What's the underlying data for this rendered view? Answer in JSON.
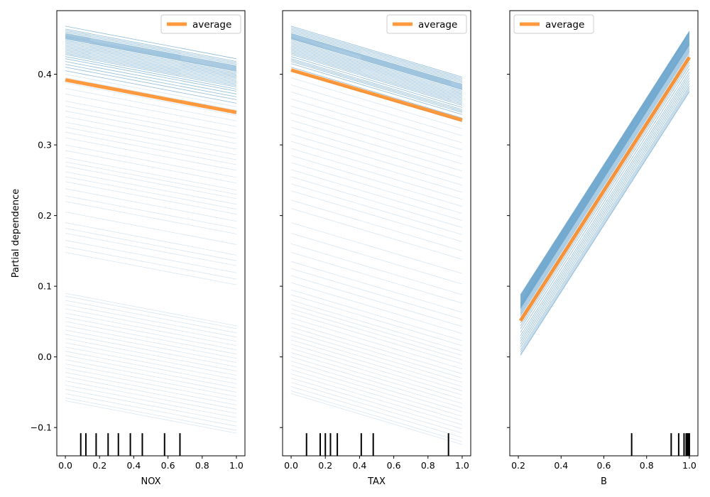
{
  "chart_data": [
    {
      "type": "line",
      "xlabel": "NOX",
      "ylabel": "Partial dependence",
      "xlim": [
        -0.05,
        1.05
      ],
      "ylim": [
        -0.14,
        0.49
      ],
      "xticks": [
        0.0,
        0.2,
        0.4,
        0.6,
        0.8,
        1.0
      ],
      "xtick_labels": [
        "0.0",
        "0.2",
        "0.4",
        "0.6",
        "0.8",
        "1.0"
      ],
      "yticks": [
        -0.1,
        0.0,
        0.1,
        0.2,
        0.3,
        0.4
      ],
      "ytick_labels": [
        "−0.1",
        "0.0",
        "0.1",
        "0.2",
        "0.3",
        "0.4"
      ],
      "legend": {
        "entries": [
          "average"
        ],
        "placement": "top-right"
      },
      "grid": false,
      "colors": {
        "individual": "#1f77b4",
        "average": "#ff7f0e"
      },
      "average": {
        "x": [
          0.0,
          1.0
        ],
        "y": [
          0.392,
          0.346
        ]
      },
      "individual_lines": {
        "x": [
          0.0,
          1.0
        ],
        "start_values": [
          0.468,
          0.464,
          0.462,
          0.46,
          0.458,
          0.457,
          0.456,
          0.455,
          0.454,
          0.453,
          0.452,
          0.451,
          0.45,
          0.448,
          0.446,
          0.444,
          0.442,
          0.44,
          0.438,
          0.436,
          0.434,
          0.432,
          0.43,
          0.428,
          0.425,
          0.422,
          0.418,
          0.414,
          0.41,
          0.405,
          0.4,
          0.395,
          0.388,
          0.38,
          0.372,
          0.362,
          0.355,
          0.348,
          0.34,
          0.332,
          0.325,
          0.318,
          0.31,
          0.3,
          0.292,
          0.282,
          0.276,
          0.27,
          0.262,
          0.255,
          0.248,
          0.238,
          0.228,
          0.22,
          0.205,
          0.19,
          0.182,
          0.175,
          0.165,
          0.156,
          0.148,
          0.09,
          0.086,
          0.08,
          0.074,
          0.068,
          0.062,
          0.056,
          0.05,
          0.044,
          0.038,
          0.032,
          0.026,
          0.02,
          0.014,
          0.008,
          0.002,
          -0.004,
          -0.01,
          -0.016,
          -0.022,
          -0.028,
          -0.034,
          -0.04,
          -0.046,
          -0.052,
          -0.058,
          -0.062
        ],
        "drop": 0.046
      },
      "rug": [
        0.09,
        0.12,
        0.18,
        0.25,
        0.31,
        0.38,
        0.45,
        0.58,
        0.67
      ]
    },
    {
      "type": "line",
      "xlabel": "TAX",
      "ylabel": "",
      "xlim": [
        -0.05,
        1.05
      ],
      "ylim": [
        -0.14,
        0.49
      ],
      "xticks": [
        0.0,
        0.2,
        0.4,
        0.6,
        0.8,
        1.0
      ],
      "xtick_labels": [
        "0.0",
        "0.2",
        "0.4",
        "0.6",
        "0.8",
        "1.0"
      ],
      "yticks": [
        -0.1,
        0.0,
        0.1,
        0.2,
        0.3,
        0.4
      ],
      "ytick_labels": [],
      "legend": {
        "entries": [
          "average"
        ],
        "placement": "top-right"
      },
      "grid": false,
      "colors": {
        "individual": "#1f77b4",
        "average": "#ff7f0e"
      },
      "average": {
        "x": [
          0.0,
          1.0
        ],
        "y": [
          0.406,
          0.335
        ]
      },
      "individual_lines": {
        "x": [
          0.0,
          1.0
        ],
        "start_values": [
          0.468,
          0.466,
          0.464,
          0.462,
          0.46,
          0.458,
          0.457,
          0.456,
          0.455,
          0.454,
          0.453,
          0.452,
          0.451,
          0.45,
          0.448,
          0.446,
          0.444,
          0.442,
          0.44,
          0.438,
          0.436,
          0.434,
          0.432,
          0.43,
          0.428,
          0.425,
          0.422,
          0.42,
          0.418,
          0.415,
          0.41,
          0.405,
          0.395,
          0.385,
          0.375,
          0.365,
          0.355,
          0.345,
          0.335,
          0.325,
          0.315,
          0.305,
          0.295,
          0.285,
          0.275,
          0.265,
          0.255,
          0.245,
          0.235,
          0.222,
          0.21,
          0.19,
          0.175,
          0.16,
          0.148,
          0.135,
          0.125,
          0.115,
          0.105,
          0.095,
          0.088,
          0.08,
          0.074,
          0.068,
          0.062,
          0.055,
          0.048,
          0.042,
          0.036,
          0.03,
          0.024,
          0.018,
          0.012,
          0.006,
          0.0,
          -0.006,
          -0.012,
          -0.018,
          -0.024,
          -0.03,
          -0.036,
          -0.042,
          -0.048,
          -0.052
        ],
        "drop": 0.072
      },
      "rug": [
        0.09,
        0.17,
        0.2,
        0.23,
        0.27,
        0.41,
        0.48,
        0.92
      ]
    },
    {
      "type": "line",
      "xlabel": "B",
      "ylabel": "",
      "xlim": [
        0.16,
        1.04
      ],
      "ylim": [
        -0.14,
        0.49
      ],
      "xticks": [
        0.2,
        0.4,
        0.6,
        0.8,
        1.0
      ],
      "xtick_labels": [
        "0.2",
        "0.4",
        "0.6",
        "0.8",
        "1.0"
      ],
      "yticks": [
        -0.1,
        0.0,
        0.1,
        0.2,
        0.3,
        0.4
      ],
      "ytick_labels": [],
      "legend": {
        "entries": [
          "average"
        ],
        "placement": "top-left"
      },
      "grid": false,
      "colors": {
        "individual": "#1f77b4",
        "average": "#ff7f0e"
      },
      "average": {
        "x": [
          0.21,
          1.0
        ],
        "y": [
          0.051,
          0.424
        ]
      },
      "individual_lines": {
        "x": [
          0.21,
          1.0
        ],
        "start_values": [
          0.088,
          0.087,
          0.086,
          0.085,
          0.084,
          0.083,
          0.082,
          0.081,
          0.08,
          0.079,
          0.078,
          0.077,
          0.076,
          0.075,
          0.074,
          0.073,
          0.072,
          0.071,
          0.07,
          0.069,
          0.068,
          0.066,
          0.064,
          0.062,
          0.06,
          0.058,
          0.055,
          0.052,
          0.048,
          0.044,
          0.04,
          0.035,
          0.03,
          0.026,
          0.022,
          0.018,
          0.014,
          0.01,
          0.007,
          0.004,
          0.002
        ],
        "rise": 0.373
      },
      "rug": [
        0.73,
        0.915,
        0.95,
        0.975,
        0.985,
        0.99,
        0.995,
        1.0
      ]
    }
  ]
}
